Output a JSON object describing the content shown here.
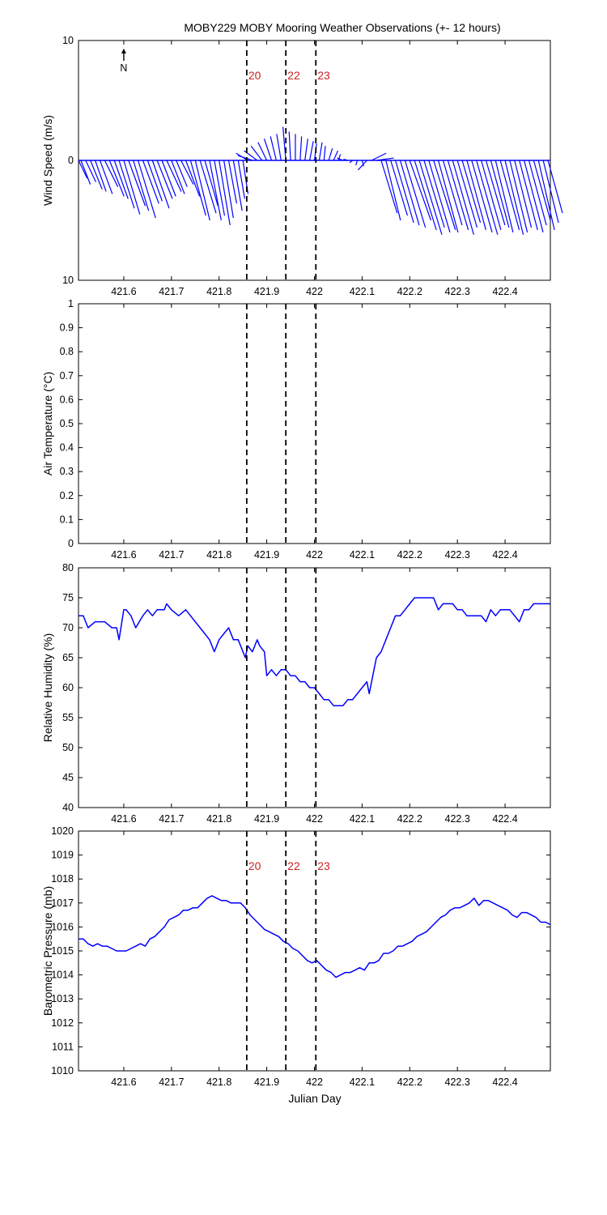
{
  "title": "MOBY229 MOBY Mooring Weather Observations (+- 12 hours)",
  "xlabel": "Julian Day",
  "colors": {
    "series": "#0000ff",
    "annotation": "#cc2222",
    "axis": "#000000",
    "marker": "#000000"
  },
  "markers": [
    {
      "x": 421.858,
      "label": "20"
    },
    {
      "x": 421.94,
      "label": "22"
    },
    {
      "x": 422.003,
      "label": "23"
    }
  ],
  "chart_data": [
    {
      "type": "line",
      "subtype": "wind-stick",
      "ylabel": "Wind Speed (m/s)",
      "xlim": [
        421.505,
        422.495
      ],
      "ylim": [
        -10,
        10
      ],
      "yticks": [
        "10",
        "0",
        "10"
      ],
      "xticks": [
        "421.6",
        "421.7",
        "421.8",
        "421.9",
        "422",
        "422.1",
        "422.2",
        "422.3",
        "422.4"
      ],
      "north_label": "N",
      "show_marker_labels": true,
      "x": [
        421.505,
        421.51,
        421.52,
        421.53,
        421.54,
        421.55,
        421.56,
        421.57,
        421.58,
        421.59,
        421.6,
        421.61,
        421.62,
        421.63,
        421.64,
        421.65,
        421.66,
        421.67,
        421.68,
        421.69,
        421.7,
        421.71,
        421.72,
        421.73,
        421.74,
        421.75,
        421.76,
        421.77,
        421.78,
        421.79,
        421.8,
        421.81,
        421.82,
        421.83,
        421.84,
        421.85,
        421.86,
        421.87,
        421.88,
        421.89,
        421.9,
        421.91,
        421.92,
        421.93,
        421.94,
        421.95,
        421.96,
        421.97,
        421.98,
        421.99,
        422.0,
        422.01,
        422.02,
        422.03,
        422.04,
        422.05,
        422.06,
        422.07,
        422.08,
        422.09,
        422.1,
        422.11,
        422.12,
        422.13,
        422.14,
        422.15,
        422.16,
        422.17,
        422.18,
        422.19,
        422.2,
        422.21,
        422.22,
        422.23,
        422.24,
        422.25,
        422.26,
        422.27,
        422.28,
        422.29,
        422.3,
        422.31,
        422.32,
        422.33,
        422.34,
        422.35,
        422.36,
        422.37,
        422.38,
        422.39,
        422.4,
        422.41,
        422.42,
        422.43,
        422.44,
        422.45,
        422.46,
        422.47,
        422.48,
        422.49
      ],
      "u": [
        1.2,
        1.3,
        1.4,
        1.6,
        1.5,
        1.7,
        1.8,
        2.0,
        1.9,
        2.1,
        2.2,
        2.3,
        2.1,
        2.4,
        2.2,
        2.0,
        2.3,
        2.1,
        1.9,
        2.0,
        1.8,
        1.5,
        1.7,
        1.9,
        2.1,
        2.0,
        2.2,
        1.8,
        1.6,
        1.4,
        1.5,
        1.3,
        1.1,
        1.2,
        0.9,
        0.7,
        -1.6,
        -2.0,
        -1.8,
        -1.5,
        -1.2,
        -1.0,
        -0.8,
        -0.6,
        -0.4,
        -0.2,
        0.0,
        0.2,
        0.4,
        0.5,
        0.3,
        0.4,
        0.2,
        0.5,
        0.6,
        0.3,
        -0.8,
        -0.6,
        -0.4,
        -0.2,
        0.2,
        -1.2,
        2.0,
        2.4,
        2.2,
        2.0,
        2.3,
        2.5,
        2.6,
        2.8,
        2.9,
        3.0,
        3.1,
        2.8,
        2.9,
        3.0,
        2.7,
        2.6,
        2.8,
        2.9,
        2.7,
        2.5,
        2.6,
        2.8,
        2.9,
        2.7,
        2.6,
        2.5,
        2.4,
        2.6,
        2.5,
        2.4,
        2.3,
        2.5,
        2.6,
        2.4,
        2.3,
        2.2,
        2.1,
        2.0
      ],
      "v": [
        -1.5,
        -2.0,
        -1.8,
        -2.4,
        -2.6,
        -2.8,
        -2.2,
        -3.0,
        -3.2,
        -4.0,
        -4.5,
        -3.8,
        -4.2,
        -4.8,
        -3.6,
        -3.4,
        -4.0,
        -3.2,
        -3.0,
        -2.6,
        -2.8,
        -2.2,
        -2.0,
        -3.0,
        -4.6,
        -5.0,
        -4.4,
        -3.8,
        -5.0,
        -4.6,
        -5.4,
        -4.8,
        -3.6,
        -4.2,
        -3.2,
        -2.8,
        0.6,
        0.4,
        0.8,
        1.2,
        1.5,
        1.8,
        2.0,
        2.2,
        2.8,
        2.4,
        2.2,
        2.0,
        1.8,
        1.6,
        1.4,
        1.5,
        1.2,
        1.0,
        0.8,
        0.5,
        0.2,
        0.1,
        -0.2,
        -0.4,
        -0.5,
        -0.8,
        0.6,
        0.2,
        -4.4,
        -5.0,
        -4.6,
        -5.2,
        -5.4,
        -5.6,
        -5.0,
        -5.8,
        -6.2,
        -5.6,
        -6.0,
        -5.8,
        -6.0,
        -5.4,
        -5.8,
        -6.2,
        -5.6,
        -5.2,
        -5.8,
        -6.0,
        -6.2,
        -5.8,
        -5.4,
        -5.6,
        -6.0,
        -5.8,
        -6.2,
        -6.0,
        -5.6,
        -5.8,
        -6.0,
        -5.4,
        -5.0,
        -5.8,
        -5.2,
        -4.4
      ]
    },
    {
      "type": "line",
      "ylabel": "Air Temperature (°C)",
      "xlim": [
        421.505,
        422.495
      ],
      "ylim": [
        0,
        1
      ],
      "yticks": [
        "0",
        "0.1",
        "0.2",
        "0.3",
        "0.4",
        "0.5",
        "0.6",
        "0.7",
        "0.8",
        "0.9",
        "1"
      ],
      "xticks": [
        "421.6",
        "421.7",
        "421.8",
        "421.9",
        "422",
        "422.1",
        "422.2",
        "422.3",
        "422.4"
      ],
      "show_marker_labels": false,
      "x": [],
      "y": []
    },
    {
      "type": "line",
      "ylabel": "Relative Humidity (%)",
      "xlim": [
        421.505,
        422.495
      ],
      "ylim": [
        40,
        80
      ],
      "yticks": [
        "40",
        "45",
        "50",
        "55",
        "60",
        "65",
        "70",
        "75",
        "80"
      ],
      "xticks": [
        "421.6",
        "421.7",
        "421.8",
        "421.9",
        "422",
        "422.1",
        "422.2",
        "422.3",
        "422.4"
      ],
      "show_marker_labels": false,
      "x": [
        421.505,
        421.515,
        421.525,
        421.54,
        421.56,
        421.575,
        421.585,
        421.59,
        421.6,
        421.605,
        421.615,
        421.625,
        421.64,
        421.65,
        421.66,
        421.67,
        421.685,
        421.69,
        421.7,
        421.715,
        421.73,
        421.74,
        421.76,
        421.77,
        421.78,
        421.79,
        421.8,
        421.81,
        421.82,
        421.83,
        421.84,
        421.85,
        421.855,
        421.86,
        421.87,
        421.88,
        421.885,
        421.895,
        421.9,
        421.91,
        421.92,
        421.93,
        421.94,
        421.95,
        421.96,
        421.97,
        421.98,
        421.99,
        422.0,
        422.01,
        422.02,
        422.03,
        422.04,
        422.05,
        422.06,
        422.07,
        422.08,
        422.09,
        422.1,
        422.11,
        422.115,
        422.125,
        422.13,
        422.14,
        422.15,
        422.16,
        422.17,
        422.18,
        422.19,
        422.2,
        422.21,
        422.22,
        422.23,
        422.24,
        422.25,
        422.26,
        422.27,
        422.28,
        422.29,
        422.3,
        422.31,
        422.32,
        422.33,
        422.34,
        422.35,
        422.36,
        422.37,
        422.38,
        422.39,
        422.4,
        422.41,
        422.42,
        422.43,
        422.44,
        422.45,
        422.46,
        422.47,
        422.48,
        422.49,
        422.495
      ],
      "y": [
        72,
        72,
        70,
        71,
        71,
        70,
        70,
        68,
        73,
        73,
        72,
        70,
        72,
        73,
        72,
        73,
        73,
        74,
        73,
        72,
        73,
        72,
        70,
        69,
        68,
        66,
        68,
        69,
        70,
        68,
        68,
        66,
        65,
        67,
        66,
        68,
        67,
        66,
        62,
        63,
        62,
        63,
        63,
        62,
        62,
        61,
        61,
        60,
        60,
        59,
        58,
        58,
        57,
        57,
        57,
        58,
        58,
        59,
        60,
        61,
        59,
        63,
        65,
        66,
        68,
        70,
        72,
        72,
        73,
        74,
        75,
        75,
        75,
        75,
        75,
        73,
        74,
        74,
        74,
        73,
        73,
        72,
        72,
        72,
        72,
        71,
        73,
        72,
        73,
        73,
        73,
        72,
        71,
        73,
        73,
        74,
        74,
        74,
        74,
        74
      ]
    },
    {
      "type": "line",
      "ylabel": "Barometric Pressure (mb)",
      "xlim": [
        421.505,
        422.495
      ],
      "ylim": [
        1010,
        1020
      ],
      "yticks": [
        "1010",
        "1011",
        "1012",
        "1013",
        "1014",
        "1015",
        "1016",
        "1017",
        "1018",
        "1019",
        "1020"
      ],
      "xticks": [
        "421.6",
        "421.7",
        "421.8",
        "421.9",
        "422",
        "422.1",
        "422.2",
        "422.3",
        "422.4"
      ],
      "show_marker_labels": true,
      "x": [
        421.505,
        421.515,
        421.525,
        421.535,
        421.545,
        421.555,
        421.565,
        421.575,
        421.585,
        421.595,
        421.605,
        421.615,
        421.625,
        421.635,
        421.645,
        421.655,
        421.665,
        421.675,
        421.685,
        421.695,
        421.705,
        421.715,
        421.725,
        421.735,
        421.745,
        421.755,
        421.765,
        421.775,
        421.785,
        421.795,
        421.805,
        421.815,
        421.825,
        421.835,
        421.845,
        421.855,
        421.865,
        421.875,
        421.885,
        421.895,
        421.905,
        421.915,
        421.925,
        421.935,
        421.945,
        421.955,
        421.965,
        421.975,
        421.985,
        421.995,
        422.005,
        422.015,
        422.025,
        422.035,
        422.045,
        422.055,
        422.065,
        422.075,
        422.085,
        422.095,
        422.105,
        422.115,
        422.125,
        422.135,
        422.145,
        422.155,
        422.165,
        422.175,
        422.185,
        422.195,
        422.205,
        422.215,
        422.225,
        422.235,
        422.245,
        422.255,
        422.265,
        422.275,
        422.285,
        422.295,
        422.305,
        422.315,
        422.325,
        422.335,
        422.345,
        422.355,
        422.365,
        422.375,
        422.385,
        422.395,
        422.405,
        422.415,
        422.425,
        422.435,
        422.445,
        422.455,
        422.465,
        422.475,
        422.485,
        422.495
      ],
      "y": [
        1015.5,
        1015.5,
        1015.3,
        1015.2,
        1015.3,
        1015.2,
        1015.2,
        1015.1,
        1015.0,
        1015.0,
        1015.0,
        1015.1,
        1015.2,
        1015.3,
        1015.2,
        1015.5,
        1015.6,
        1015.8,
        1016.0,
        1016.3,
        1016.4,
        1016.5,
        1016.7,
        1016.7,
        1016.8,
        1016.8,
        1017.0,
        1017.2,
        1017.3,
        1017.2,
        1017.1,
        1017.1,
        1017.0,
        1017.0,
        1017.0,
        1016.8,
        1016.5,
        1016.3,
        1016.1,
        1015.9,
        1015.8,
        1015.7,
        1015.6,
        1015.4,
        1015.3,
        1015.1,
        1015.0,
        1014.8,
        1014.6,
        1014.5,
        1014.6,
        1014.4,
        1014.2,
        1014.1,
        1013.9,
        1014.0,
        1014.1,
        1014.1,
        1014.2,
        1014.3,
        1014.2,
        1014.5,
        1014.5,
        1014.6,
        1014.9,
        1014.9,
        1015.0,
        1015.2,
        1015.2,
        1015.3,
        1015.4,
        1015.6,
        1015.7,
        1015.8,
        1016.0,
        1016.2,
        1016.4,
        1016.5,
        1016.7,
        1016.8,
        1016.8,
        1016.9,
        1017.0,
        1017.2,
        1016.9,
        1017.1,
        1017.1,
        1017.0,
        1016.9,
        1016.8,
        1016.7,
        1016.5,
        1016.4,
        1016.6,
        1016.6,
        1016.5,
        1016.4,
        1016.2,
        1016.2,
        1016.1
      ]
    }
  ]
}
